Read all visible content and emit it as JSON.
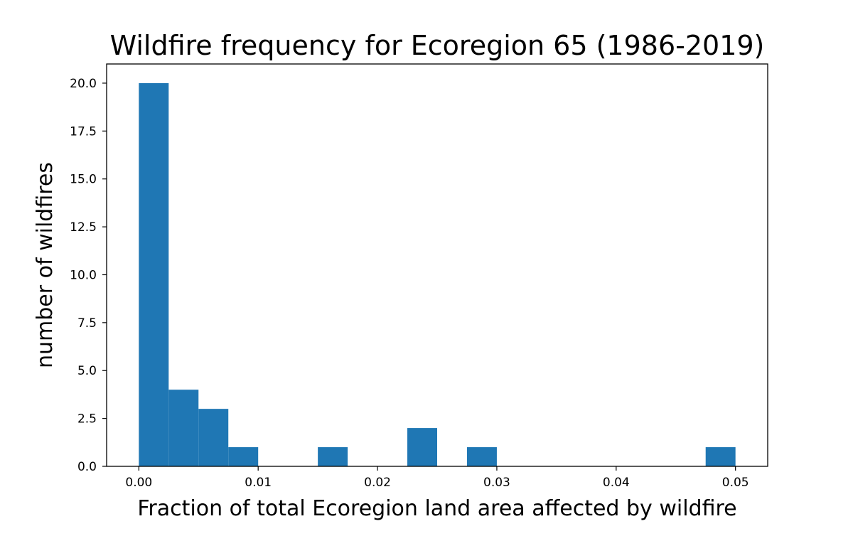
{
  "chart_data": {
    "type": "bar",
    "title": "Wildfire frequency for Ecoregion 65 (1986-2019)",
    "xlabel": "Fraction of total Ecoregion land area affected by wildfire",
    "ylabel": "number of wildfires",
    "xlim": [
      -0.0027,
      0.0527
    ],
    "ylim": [
      0,
      21
    ],
    "bar_color": "#1f77b4",
    "grid": false,
    "legend": "none",
    "x_ticks": [
      {
        "value": 0.0,
        "label": "0.00"
      },
      {
        "value": 0.01,
        "label": "0.01"
      },
      {
        "value": 0.02,
        "label": "0.02"
      },
      {
        "value": 0.03,
        "label": "0.03"
      },
      {
        "value": 0.04,
        "label": "0.04"
      },
      {
        "value": 0.05,
        "label": "0.05"
      }
    ],
    "y_ticks": [
      {
        "value": 0.0,
        "label": "0.0"
      },
      {
        "value": 2.5,
        "label": "2.5"
      },
      {
        "value": 5.0,
        "label": "5.0"
      },
      {
        "value": 7.5,
        "label": "7.5"
      },
      {
        "value": 10.0,
        "label": "10.0"
      },
      {
        "value": 12.5,
        "label": "12.5"
      },
      {
        "value": 15.0,
        "label": "15.0"
      },
      {
        "value": 17.5,
        "label": "17.5"
      },
      {
        "value": 20.0,
        "label": "20.0"
      }
    ],
    "bins": [
      {
        "x0": 0.0,
        "x1": 0.0025,
        "count": 20
      },
      {
        "x0": 0.0025,
        "x1": 0.005,
        "count": 4
      },
      {
        "x0": 0.005,
        "x1": 0.0075,
        "count": 3
      },
      {
        "x0": 0.0075,
        "x1": 0.01,
        "count": 1
      },
      {
        "x0": 0.015,
        "x1": 0.0175,
        "count": 1
      },
      {
        "x0": 0.0225,
        "x1": 0.025,
        "count": 2
      },
      {
        "x0": 0.0275,
        "x1": 0.03,
        "count": 1
      },
      {
        "x0": 0.0475,
        "x1": 0.05,
        "count": 1
      }
    ]
  }
}
